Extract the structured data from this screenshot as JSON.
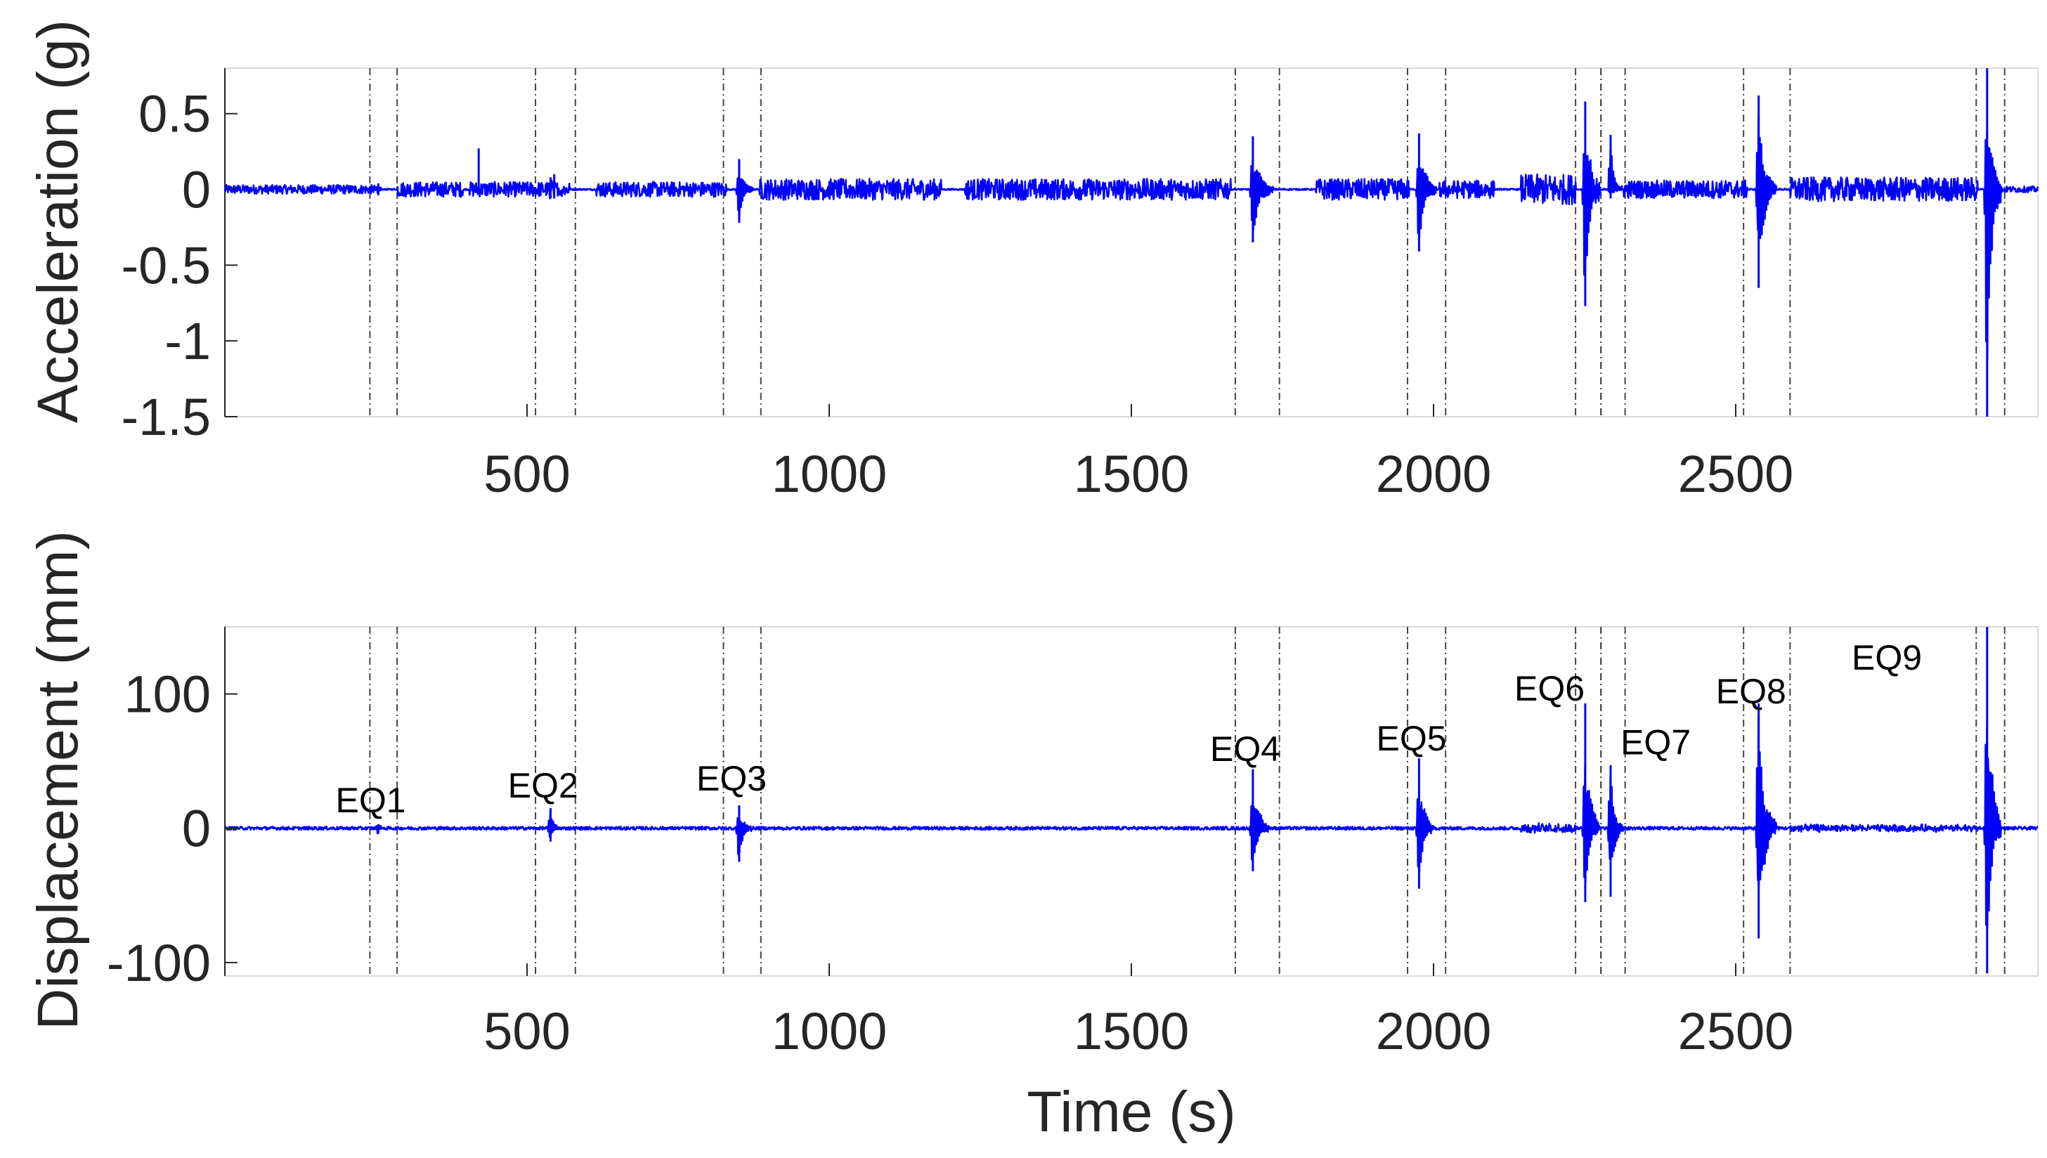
{
  "chart_data": [
    {
      "type": "line",
      "panel": "top",
      "xlabel": "",
      "ylabel": "Acceleration (g)",
      "xlim": [
        0,
        3000
      ],
      "ylim": [
        -1.5,
        0.8
      ],
      "x_ticks": [
        500,
        1000,
        1500,
        2000,
        2500
      ],
      "x_tick_labels": [
        "500",
        "1000",
        "1500",
        "2000",
        "2500"
      ],
      "y_ticks": [
        0.5,
        0,
        -0.5,
        -1,
        -1.5
      ],
      "y_tick_labels": [
        "0.5",
        "0",
        "-0.5",
        "-1",
        "-1.5"
      ],
      "grid": false,
      "line_color": "#0000ff",
      "noise_segments": [
        {
          "start": 0,
          "end": 250,
          "amplitude": 0.03
        },
        {
          "start": 285,
          "end": 395,
          "amplitude": 0.05
        },
        {
          "start": 405,
          "end": 570,
          "amplitude": 0.05
        },
        {
          "start": 615,
          "end": 830,
          "amplitude": 0.05
        },
        {
          "start": 885,
          "end": 1185,
          "amplitude": 0.07
        },
        {
          "start": 1225,
          "end": 1665,
          "amplitude": 0.07
        },
        {
          "start": 1805,
          "end": 1960,
          "amplitude": 0.07
        },
        {
          "start": 2010,
          "end": 2100,
          "amplitude": 0.06
        },
        {
          "start": 2145,
          "end": 2235,
          "amplitude": 0.1
        },
        {
          "start": 2250,
          "end": 2275,
          "amplitude": 0.05
        },
        {
          "start": 2315,
          "end": 2520,
          "amplitude": 0.06
        },
        {
          "start": 2590,
          "end": 2900,
          "amplitude": 0.08
        },
        {
          "start": 2940,
          "end": 3000,
          "amplitude": 0.02
        }
      ],
      "spikes": [
        {
          "t": 420,
          "min": -0.02,
          "max": 0.27
        },
        {
          "t": 545,
          "min": -0.06,
          "max": 0.1
        }
      ],
      "events": [
        {
          "label": "EQ1",
          "start": 240,
          "end": 285,
          "peak_t": 253,
          "max": 0.04,
          "min": -0.04,
          "duration": 12
        },
        {
          "label": "EQ2",
          "start": 514,
          "end": 580,
          "peak_t": 538,
          "max": 0.08,
          "min": -0.06,
          "duration": 20
        },
        {
          "label": "EQ3",
          "start": 825,
          "end": 887,
          "peak_t": 850,
          "max": 0.2,
          "min": -0.22,
          "duration": 25
        },
        {
          "label": "EQ4",
          "start": 1672,
          "end": 1745,
          "peak_t": 1700,
          "max": 0.35,
          "min": -0.35,
          "duration": 35
        },
        {
          "label": "EQ5",
          "start": 1957,
          "end": 2020,
          "peak_t": 1975,
          "max": 0.37,
          "min": -0.41,
          "duration": 30
        },
        {
          "label": "EQ6",
          "start": 2235,
          "end": 2277,
          "peak_t": 2250,
          "max": 0.58,
          "min": -0.77,
          "duration": 25
        },
        {
          "label": "EQ7",
          "start": 2277,
          "end": 2317,
          "peak_t": 2292,
          "max": 0.36,
          "min": -0.06,
          "duration": 20
        },
        {
          "label": "EQ8",
          "start": 2513,
          "end": 2590,
          "peak_t": 2537,
          "max": 0.62,
          "min": -0.65,
          "duration": 30
        },
        {
          "label": "EQ9",
          "start": 2898,
          "end": 2945,
          "peak_t": 2915,
          "max": 0.8,
          "min": -1.5,
          "duration": 25
        }
      ]
    },
    {
      "type": "line",
      "panel": "bottom",
      "xlabel": "Time (s)",
      "ylabel": "Displacement (mm)",
      "xlim": [
        0,
        3000
      ],
      "ylim": [
        -110,
        150
      ],
      "x_ticks": [
        500,
        1000,
        1500,
        2000,
        2500
      ],
      "x_tick_labels": [
        "500",
        "1000",
        "1500",
        "2000",
        "2500"
      ],
      "y_ticks": [
        100,
        0,
        -100
      ],
      "y_tick_labels": [
        "100",
        "0",
        "-100"
      ],
      "grid": false,
      "line_color": "#0000ff",
      "baseline_noise": 1.2,
      "noisier_segments": [
        {
          "start": 2145,
          "end": 2235,
          "amplitude": 3
        },
        {
          "start": 2590,
          "end": 2900,
          "amplitude": 2
        }
      ],
      "events": [
        {
          "label": "EQ1",
          "start": 240,
          "end": 285,
          "peak_t": 253,
          "max": 3,
          "min": -4,
          "duration": 10
        },
        {
          "label": "EQ2",
          "start": 514,
          "end": 580,
          "peak_t": 538,
          "max": 15,
          "min": -10,
          "duration": 15
        },
        {
          "label": "EQ3",
          "start": 825,
          "end": 887,
          "peak_t": 850,
          "max": 17,
          "min": -25,
          "duration": 22
        },
        {
          "label": "EQ4",
          "start": 1672,
          "end": 1745,
          "peak_t": 1700,
          "max": 44,
          "min": -32,
          "duration": 30
        },
        {
          "label": "EQ5",
          "start": 1957,
          "end": 2020,
          "peak_t": 1975,
          "max": 52,
          "min": -45,
          "duration": 25
        },
        {
          "label": "EQ6",
          "start": 2235,
          "end": 2277,
          "peak_t": 2250,
          "max": 93,
          "min": -55,
          "duration": 25
        },
        {
          "label": "EQ7",
          "start": 2277,
          "end": 2317,
          "peak_t": 2292,
          "max": 47,
          "min": -51,
          "duration": 22
        },
        {
          "label": "EQ8",
          "start": 2513,
          "end": 2590,
          "peak_t": 2537,
          "max": 93,
          "min": -82,
          "duration": 30
        },
        {
          "label": "EQ9",
          "start": 2898,
          "end": 2945,
          "peak_t": 2915,
          "max": 150,
          "min": -108,
          "duration": 25
        }
      ]
    }
  ]
}
